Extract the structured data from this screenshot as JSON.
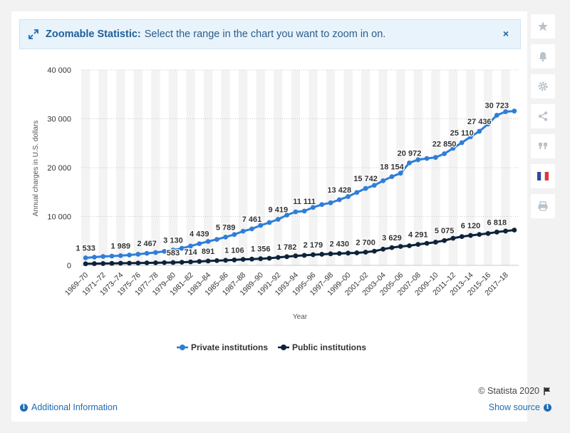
{
  "banner": {
    "title": "Zoomable Statistic:",
    "message": "Select the range in the chart you want to zoom in on.",
    "close": "×"
  },
  "toolbar": {
    "items": [
      "star-icon",
      "bell-icon",
      "gear-icon",
      "share-icon",
      "quote-icon",
      "flag-icon",
      "print-icon"
    ]
  },
  "footer": {
    "copyright": "© Statista 2020",
    "additional_info": "Additional Information",
    "show_source": "Show source"
  },
  "colors": {
    "private": "#2f7ed8",
    "public": "#0d233a",
    "grid": "#c9c9c9",
    "band": "#f3f3f3"
  },
  "chart_data": {
    "type": "line",
    "title": "",
    "xlabel": "Year",
    "ylabel": "Annual charges in U.S. dollars",
    "ylim": [
      0,
      40000
    ],
    "yticks": [
      0,
      10000,
      20000,
      30000,
      40000
    ],
    "ytick_labels": [
      "0",
      "10 000",
      "20 000",
      "30 000",
      "40 000"
    ],
    "grid": true,
    "legend_position": "bottom",
    "categories": [
      "1969–70",
      "1970–71",
      "1971–72",
      "1972–73",
      "1973–74",
      "1974–75",
      "1975–76",
      "1976–77",
      "1977–78",
      "1978–79",
      "1979–80",
      "1980–81",
      "1981–82",
      "1982–83",
      "1983–84",
      "1984–85",
      "1985–86",
      "1986–87",
      "1987–88",
      "1988–89",
      "1989–90",
      "1990–91",
      "1991–92",
      "1992–93",
      "1993–94",
      "1994–95",
      "1995–96",
      "1996–97",
      "1997–98",
      "1998–99",
      "1999–00",
      "2000–01",
      "2001–02",
      "2002–03",
      "2003–04",
      "2004–05",
      "2005–06",
      "2006–07",
      "2007–08",
      "2008–09",
      "2009–10",
      "2010–11",
      "2011–12",
      "2012–13",
      "2013–14",
      "2014–15",
      "2015–16",
      "2016–17",
      "2017–18",
      "2018–19"
    ],
    "x_tick_labels": [
      "1969–70",
      "1971–72",
      "1973–74",
      "1975–76",
      "1977–78",
      "1979–80",
      "1981–82",
      "1983–84",
      "1985–86",
      "1987–88",
      "1989–90",
      "1991–92",
      "1993–94",
      "1995–96",
      "1997–98",
      "1999–00",
      "2001–02",
      "2003–04",
      "2005–06",
      "2007–08",
      "2009–10",
      "2011–12",
      "2013–14",
      "2015–16",
      "2017–18"
    ],
    "series": [
      {
        "name": "Private institutions",
        "values": [
          1533,
          1684,
          1820,
          1898,
          1989,
          2117,
          2272,
          2467,
          2624,
          2867,
          3130,
          3498,
          3953,
          4439,
          4891,
          5315,
          5789,
          6316,
          6988,
          7461,
          8174,
          8772,
          9419,
          10294,
          10952,
          11111,
          11862,
          12443,
          12801,
          13428,
          14081,
          14923,
          15742,
          16383,
          17315,
          18154,
          18862,
          20972,
          21618,
          21878,
          22092,
          22850,
          23960,
          25110,
          26312,
          27436,
          28926,
          30723,
          31448,
          31580
        ]
      },
      {
        "name": "Public institutions",
        "values": [
          323,
          355,
          376,
          407,
          438,
          455,
          473,
          507,
          526,
          563,
          583,
          635,
          714,
          798,
          891,
          971,
          1044,
          1106,
          1218,
          1285,
          1356,
          1454,
          1624,
          1782,
          1942,
          2057,
          2179,
          2271,
          2360,
          2430,
          2506,
          2562,
          2700,
          2903,
          3313,
          3629,
          3874,
          4019,
          4291,
          4512,
          4751,
          5075,
          5550,
          5897,
          6120,
          6336,
          6525,
          6818,
          7017,
          7225
        ]
      }
    ],
    "data_labels": [
      {
        "series": 0,
        "index": 0,
        "text": "1 533"
      },
      {
        "series": 0,
        "index": 4,
        "text": "1 989"
      },
      {
        "series": 0,
        "index": 7,
        "text": "2 467"
      },
      {
        "series": 0,
        "index": 10,
        "text": "3 130"
      },
      {
        "series": 0,
        "index": 13,
        "text": "4 439"
      },
      {
        "series": 0,
        "index": 16,
        "text": "5 789"
      },
      {
        "series": 0,
        "index": 19,
        "text": "7 461"
      },
      {
        "series": 0,
        "index": 22,
        "text": "9 419"
      },
      {
        "series": 0,
        "index": 25,
        "text": "11 111"
      },
      {
        "series": 0,
        "index": 29,
        "text": "13 428"
      },
      {
        "series": 0,
        "index": 32,
        "text": "15 742"
      },
      {
        "series": 0,
        "index": 35,
        "text": "18 154"
      },
      {
        "series": 0,
        "index": 37,
        "text": "20 972"
      },
      {
        "series": 0,
        "index": 41,
        "text": "22 850"
      },
      {
        "series": 0,
        "index": 43,
        "text": "25 110"
      },
      {
        "series": 0,
        "index": 45,
        "text": "27 436"
      },
      {
        "series": 0,
        "index": 47,
        "text": "30 723"
      },
      {
        "series": 1,
        "index": 10,
        "text": "583"
      },
      {
        "series": 1,
        "index": 12,
        "text": "714"
      },
      {
        "series": 1,
        "index": 14,
        "text": "891"
      },
      {
        "series": 1,
        "index": 17,
        "text": "1 106"
      },
      {
        "series": 1,
        "index": 20,
        "text": "1 356"
      },
      {
        "series": 1,
        "index": 23,
        "text": "1 782"
      },
      {
        "series": 1,
        "index": 26,
        "text": "2 179"
      },
      {
        "series": 1,
        "index": 29,
        "text": "2 430"
      },
      {
        "series": 1,
        "index": 32,
        "text": "2 700"
      },
      {
        "series": 1,
        "index": 35,
        "text": "3 629"
      },
      {
        "series": 1,
        "index": 38,
        "text": "4 291"
      },
      {
        "series": 1,
        "index": 41,
        "text": "5 075"
      },
      {
        "series": 1,
        "index": 44,
        "text": "6 120"
      },
      {
        "series": 1,
        "index": 47,
        "text": "6 818"
      }
    ]
  }
}
